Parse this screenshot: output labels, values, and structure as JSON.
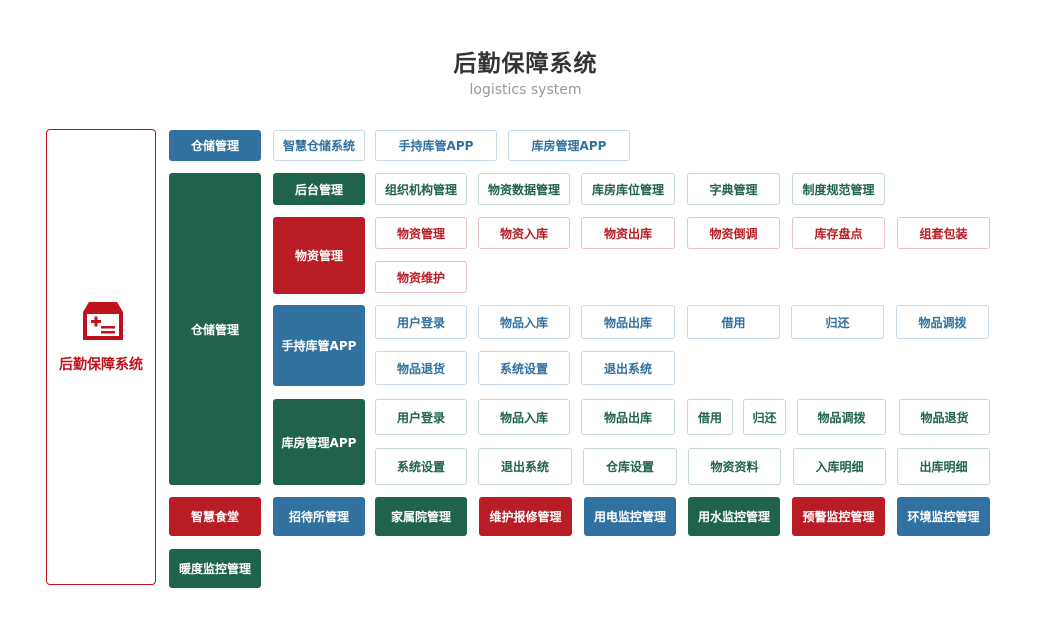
{
  "header": {
    "title": "后勤保障系统",
    "subtitle": "logistics system"
  },
  "side": {
    "label": "后勤保障系统",
    "icon": "first-aid-kit-icon",
    "color": "#c0121c"
  },
  "colors": {
    "blue": "#30719f",
    "green": "#20634d",
    "red": "#b81c24"
  },
  "warehouse_top": {
    "label": "仓储管理",
    "items": [
      "智慧仓储系统",
      "手持库管APP",
      "库房管理APP"
    ]
  },
  "warehouse": {
    "label": "仓储管理",
    "backend": {
      "label": "后台管理",
      "items": [
        "组织机构管理",
        "物资数据管理",
        "库房库位管理",
        "字典管理",
        "制度规范管理"
      ]
    },
    "materials": {
      "label": "物资管理",
      "items": [
        "物资管理",
        "物资入库",
        "物资出库",
        "物资倒调",
        "库存盘点",
        "组套包装",
        "物资维护"
      ]
    },
    "handheld": {
      "label": "手持库管APP",
      "items": [
        "用户登录",
        "物品入库",
        "物品出库",
        "借用",
        "归还",
        "物品调拨",
        "物品退货",
        "系统设置",
        "退出系统"
      ]
    },
    "storeroom": {
      "label": "库房管理APP",
      "items": [
        "用户登录",
        "物品入库",
        "物品出库",
        "借用",
        "归还",
        "物品调拨",
        "物品退货",
        "系统设置",
        "退出系统",
        "仓库设置",
        "物资资料",
        "入库明细",
        "出库明细"
      ]
    }
  },
  "modules": [
    "智慧食堂",
    "招待所管理",
    "家属院管理",
    "维护报修管理",
    "用电监控管理",
    "用水监控管理",
    "预警监控管理",
    "环境监控管理",
    "暖度监控管理"
  ]
}
